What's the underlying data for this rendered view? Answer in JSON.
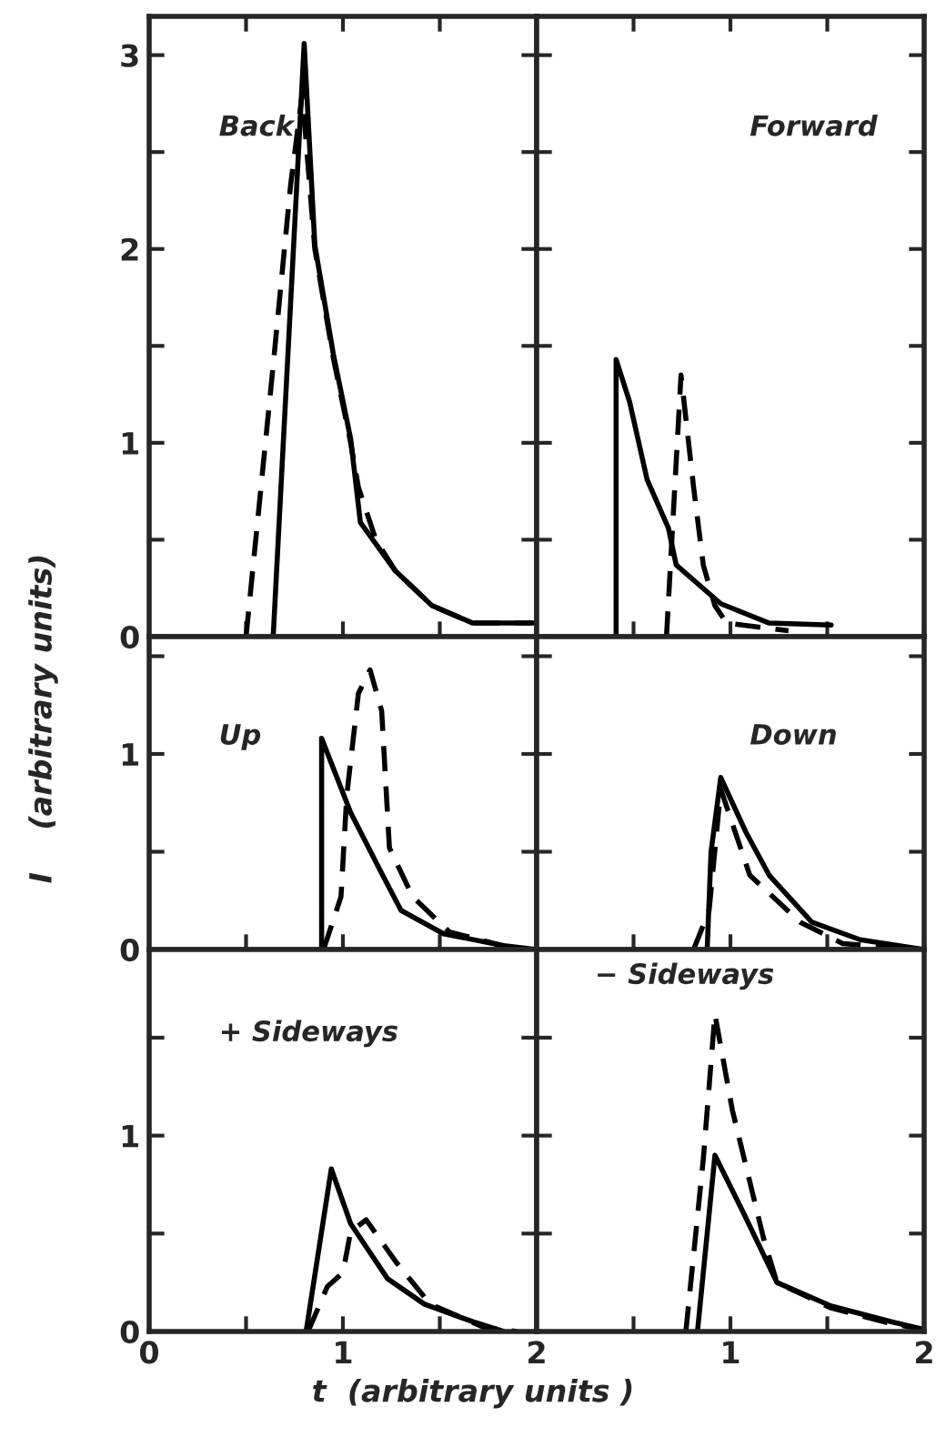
{
  "chart_data": [
    {
      "type": "line",
      "annotations": [
        "Back"
      ],
      "xlim": [
        0,
        2
      ],
      "ylim": [
        0,
        3.2
      ],
      "xticks": [
        0,
        {
          "value": 0.5,
          "label": null
        },
        1,
        {
          "value": 1.5,
          "label": null
        },
        2
      ],
      "yticks": [
        0,
        {
          "value": 0.5,
          "label": null
        },
        1,
        {
          "value": 1.5,
          "label": null
        },
        2,
        {
          "value": 2.5,
          "label": null
        },
        3
      ],
      "tick_labels": "y",
      "series": [
        {
          "color": "#000000",
          "line_style": "solid",
          "x": [
            0.64,
            0.8,
            0.855,
            0.95,
            1.04,
            1.09,
            1.27,
            1.46,
            1.67,
            1.98
          ],
          "values": [
            0,
            3.06,
            2.02,
            1.46,
            1.02,
            0.59,
            0.34,
            0.16,
            0.07,
            0.07
          ]
        },
        {
          "color": "#000000",
          "line_style": "dashed",
          "x": [
            0.5,
            0.64,
            0.73,
            0.79,
            0.855,
            0.95,
            1.04,
            1.08,
            1.17,
            1.27,
            1.46,
            1.67,
            1.98
          ],
          "values": [
            0,
            1.4,
            2.33,
            2.8,
            2.0,
            1.44,
            1.0,
            0.77,
            0.5,
            0.34,
            0.16,
            0.07,
            0.07
          ]
        }
      ]
    },
    {
      "type": "line",
      "annotations": [
        "Forward"
      ],
      "xlim": [
        0,
        2
      ],
      "ylim": [
        0,
        3.2
      ],
      "xticks": [
        {
          "value": 0,
          "label": null
        },
        {
          "value": 0.5,
          "label": null
        },
        {
          "value": 1,
          "label": null
        },
        {
          "value": 1.5,
          "label": null
        },
        {
          "value": 2,
          "label": null
        }
      ],
      "yticks": [
        {
          "value": 0,
          "label": null
        },
        {
          "value": 0.5,
          "label": null
        },
        {
          "value": 1,
          "label": null
        },
        {
          "value": 1.5,
          "label": null
        },
        {
          "value": 2,
          "label": null
        },
        {
          "value": 2.5,
          "label": null
        },
        {
          "value": 3,
          "label": null
        }
      ],
      "tick_labels": false,
      "series": [
        {
          "color": "#000000",
          "line_style": "solid",
          "x": [
            0.41,
            0.41,
            0.48,
            0.57,
            0.68,
            0.72,
            0.95,
            1.2,
            1.52
          ],
          "values": [
            0,
            1.43,
            1.21,
            0.81,
            0.56,
            0.37,
            0.17,
            0.07,
            0.06
          ]
        },
        {
          "color": "#000000",
          "line_style": "dashed",
          "x": [
            0.67,
            0.745,
            0.81,
            0.86,
            0.92,
            0.98,
            1.3
          ],
          "values": [
            0,
            1.35,
            0.77,
            0.37,
            0.16,
            0.07,
            0.03
          ]
        }
      ]
    },
    {
      "type": "line",
      "annotations": [
        "Up"
      ],
      "ylabel": "I    (arbitrary units)",
      "xlim": [
        0,
        2
      ],
      "ylim": [
        0,
        1.6
      ],
      "xticks": [
        {
          "value": 0,
          "label": null
        },
        {
          "value": 0.5,
          "label": null
        },
        {
          "value": 1,
          "label": null
        },
        {
          "value": 1.5,
          "label": null
        },
        {
          "value": 2,
          "label": null
        }
      ],
      "yticks": [
        0,
        {
          "value": 0.5,
          "label": null
        },
        1,
        {
          "value": 1.5,
          "label": null
        }
      ],
      "tick_labels": "y",
      "series": [
        {
          "color": "#000000",
          "line_style": "solid",
          "x": [
            0.89,
            0.89,
            1.04,
            1.2,
            1.3,
            1.52,
            1.83,
            2.0
          ],
          "values": [
            0,
            1.08,
            0.7,
            0.39,
            0.2,
            0.08,
            0.02,
            0
          ]
        },
        {
          "color": "#000000",
          "line_style": "dashed",
          "x": [
            0.9,
            0.99,
            1.02,
            1.08,
            1.14,
            1.2,
            1.24,
            1.36,
            1.55,
            1.9
          ],
          "values": [
            0,
            0.27,
            0.79,
            1.31,
            1.43,
            1.22,
            0.52,
            0.27,
            0.09,
            0
          ]
        }
      ]
    },
    {
      "type": "line",
      "annotations": [
        "Down"
      ],
      "xlim": [
        0,
        2
      ],
      "ylim": [
        0,
        1.6
      ],
      "xticks": [
        {
          "value": 0,
          "label": null
        },
        {
          "value": 0.5,
          "label": null
        },
        {
          "value": 1,
          "label": null
        },
        {
          "value": 1.5,
          "label": null
        },
        {
          "value": 2,
          "label": null
        }
      ],
      "yticks": [
        {
          "value": 0,
          "label": null
        },
        {
          "value": 0.5,
          "label": null
        },
        {
          "value": 1,
          "label": null
        },
        {
          "value": 1.5,
          "label": null
        }
      ],
      "tick_labels": false,
      "series": [
        {
          "color": "#000000",
          "line_style": "solid",
          "x": [
            0.88,
            0.9,
            0.95,
            1.08,
            1.2,
            1.42,
            1.67,
            2.0
          ],
          "values": [
            0,
            0.5,
            0.88,
            0.6,
            0.38,
            0.14,
            0.05,
            0
          ]
        },
        {
          "color": "#000000",
          "line_style": "dashed",
          "x": [
            0.81,
            0.89,
            0.95,
            1.1,
            1.36,
            1.58,
            2.0
          ],
          "values": [
            0,
            0.2,
            0.82,
            0.38,
            0.14,
            0.03,
            0
          ]
        }
      ]
    },
    {
      "type": "line",
      "annotations": [
        "+ Sideways"
      ],
      "xlabel": "t  (arbitrary units )",
      "xlim": [
        0,
        2
      ],
      "ylim": [
        0,
        1.95
      ],
      "xticks": [
        0,
        {
          "value": 0.5,
          "label": null
        },
        1,
        {
          "value": 1.5,
          "label": null
        },
        2
      ],
      "yticks": [
        0,
        {
          "value": 0.5,
          "label": null
        },
        1,
        {
          "value": 1.5,
          "label": null
        }
      ],
      "series": [
        {
          "color": "#000000",
          "line_style": "solid",
          "x": [
            0.81,
            0.94,
            1.04,
            1.23,
            1.42,
            1.67,
            1.83
          ],
          "values": [
            0,
            0.83,
            0.55,
            0.27,
            0.14,
            0.05,
            0
          ]
        },
        {
          "color": "#000000",
          "line_style": "dashed",
          "x": [
            0.82,
            0.92,
            1.0,
            1.04,
            1.12,
            1.27,
            1.45,
            1.73,
            1.9
          ],
          "values": [
            0,
            0.23,
            0.3,
            0.51,
            0.57,
            0.36,
            0.14,
            0.02,
            0
          ]
        }
      ]
    },
    {
      "type": "line",
      "annotations": [
        "− Sideways"
      ],
      "xlim": [
        0,
        2
      ],
      "ylim": [
        0,
        1.95
      ],
      "xticks": [
        {
          "value": 0,
          "label": null
        },
        {
          "value": 0.5,
          "label": null
        },
        1,
        {
          "value": 1.5,
          "label": null
        },
        2
      ],
      "yticks": [
        {
          "value": 0,
          "label": null
        },
        {
          "value": 0.5,
          "label": null
        },
        {
          "value": 1,
          "label": null
        },
        {
          "value": 1.5,
          "label": null
        }
      ],
      "tick_labels": "x",
      "series": [
        {
          "color": "#000000",
          "line_style": "solid",
          "x": [
            0.83,
            0.92,
            1.07,
            1.24,
            1.52,
            1.83,
            2.0
          ],
          "values": [
            0,
            0.9,
            0.6,
            0.25,
            0.13,
            0.05,
            0.01
          ]
        },
        {
          "color": "#000000",
          "line_style": "dashed",
          "x": [
            0.77,
            0.86,
            0.92,
            1.01,
            1.17,
            1.24,
            1.52,
            1.83,
            2.0
          ],
          "values": [
            0,
            0.88,
            1.62,
            1.13,
            0.48,
            0.25,
            0.12,
            0.04,
            0.01
          ]
        }
      ]
    }
  ]
}
